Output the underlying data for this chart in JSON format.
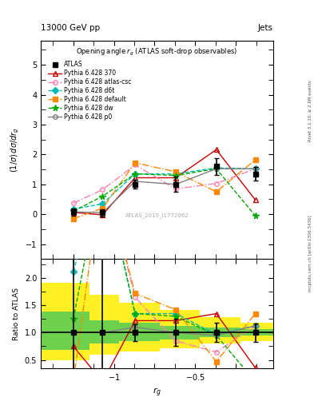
{
  "title_top": "13000 GeV pp",
  "title_right": "Jets",
  "inner_title": "Opening angle $r_g$ (ATLAS soft-drop observables)",
  "rivet_label": "Rivet 3.1.10, ≥ 2.6M events",
  "arxiv_label": "mcplots.cern.ch [arXiv:1306.3436]",
  "watermark": "ATLAS_2019_I1772062",
  "xlabel": "$r_g$",
  "ylabel_main": "$(1/\\sigma)\\,d\\sigma/dr_g$",
  "ylabel_ratio": "Ratio to ATLAS",
  "main_ylim": [
    -1.5,
    5.8
  ],
  "ratio_ylim": [
    0.35,
    2.35
  ],
  "xlim": [
    -1.45,
    -0.02
  ],
  "x_vals": [
    -1.25,
    -1.07,
    -0.87,
    -0.62,
    -0.37,
    -0.13
  ],
  "atlas_y": [
    0.08,
    0.05,
    1.0,
    1.0,
    1.6,
    1.35
  ],
  "atlas_yerr": [
    0.12,
    0.12,
    0.15,
    0.25,
    0.28,
    0.22
  ],
  "py370_y": [
    0.06,
    -0.02,
    1.22,
    1.22,
    2.16,
    0.48
  ],
  "pyatlas_y": [
    0.37,
    0.82,
    1.65,
    0.85,
    1.03,
    1.52
  ],
  "pyd6t_y": [
    0.17,
    0.35,
    1.35,
    1.35,
    1.55,
    1.52
  ],
  "pydef_y": [
    -0.15,
    0.2,
    1.72,
    1.42,
    0.75,
    1.82
  ],
  "pydw_y": [
    0.1,
    0.6,
    1.35,
    1.3,
    1.52,
    -0.05
  ],
  "pyp0_y": [
    0.08,
    0.05,
    1.1,
    1.0,
    1.52,
    1.52
  ],
  "c_370": "#cc0000",
  "c_atlas": "#ff80b0",
  "c_d6t": "#00bbbb",
  "c_def": "#ff8800",
  "c_dw": "#00aa00",
  "c_p0": "#808080",
  "c_black": "#000000",
  "band_edges": [
    -1.45,
    -1.3,
    -1.15,
    -0.97,
    -0.72,
    -0.47,
    -0.22,
    -0.02
  ],
  "yellow_lo": [
    0.5,
    0.5,
    0.6,
    0.65,
    0.72,
    0.8,
    0.85,
    0.85
  ],
  "yellow_hi": [
    1.92,
    1.92,
    1.7,
    1.55,
    1.42,
    1.28,
    1.18,
    1.18
  ],
  "green_lo": [
    0.68,
    0.68,
    0.8,
    0.84,
    0.88,
    0.92,
    0.95,
    0.95
  ],
  "green_hi": [
    1.38,
    1.38,
    1.22,
    1.18,
    1.13,
    1.09,
    1.06,
    1.06
  ]
}
